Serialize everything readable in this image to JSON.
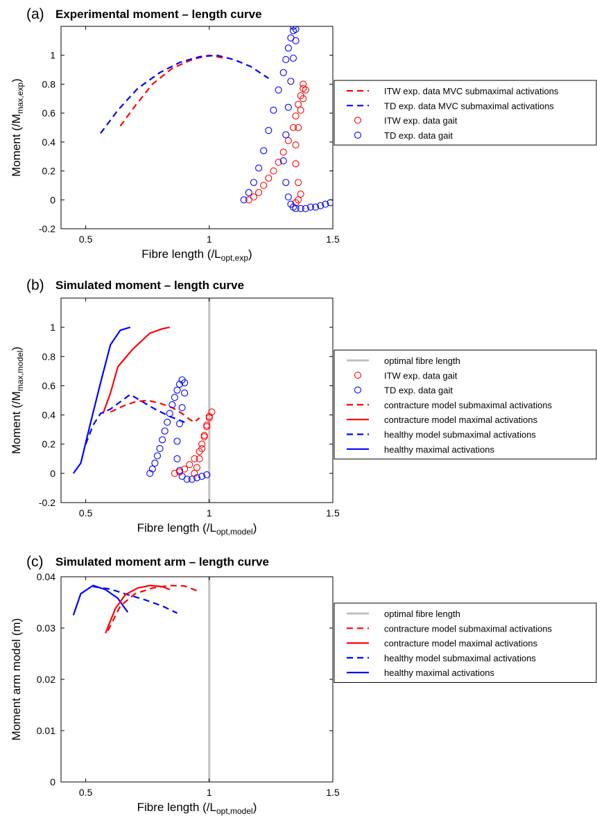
{
  "chart_data": [
    {
      "type": "line",
      "panel_label": "(a)",
      "title": "Experimental moment – length curve",
      "xlabel": "Fibre length (/L",
      "xlabel_sub": "opt,exp",
      "xlabel_end": ")",
      "ylabel": "Moment (/M",
      "ylabel_sub": "max,exp",
      "ylabel_end": ")",
      "xlim": [
        0.4,
        1.5
      ],
      "ylim": [
        -0.2,
        1.2
      ],
      "xticks": [
        "0.5",
        "1",
        "1.5"
      ],
      "xtick_values": [
        0.5,
        1,
        1.5
      ],
      "yticks": [
        "-0.2",
        "0",
        "0.2",
        "0.4",
        "0.6",
        "0.8",
        "1"
      ],
      "ytick_values": [
        -0.2,
        0,
        0.2,
        0.4,
        0.6,
        0.8,
        1
      ],
      "vline": null,
      "legend": [
        {
          "label": "ITW exp. data MVC submaximal activations",
          "style": "dashed",
          "color": "#ff0000"
        },
        {
          "label": "TD exp. data MVC submaximal activations",
          "style": "dashed",
          "color": "#0000ff"
        },
        {
          "label": "ITW exp. data gait",
          "style": "circle",
          "color": "#ff0000"
        },
        {
          "label": "TD exp. data gait",
          "style": "circle",
          "color": "#0000ff"
        }
      ],
      "series": [
        {
          "style": "dashed",
          "color": "#ff0000",
          "x": [
            0.64,
            0.7,
            0.77,
            0.85,
            0.93,
            1.0,
            1.06
          ],
          "y": [
            0.51,
            0.65,
            0.8,
            0.91,
            0.97,
            1.0,
            0.98
          ]
        },
        {
          "style": "dashed",
          "color": "#0000ff",
          "x": [
            0.56,
            0.63,
            0.71,
            0.8,
            0.88,
            0.96,
            1.03,
            1.1,
            1.17,
            1.24
          ],
          "y": [
            0.46,
            0.62,
            0.77,
            0.88,
            0.95,
            0.99,
            1.0,
            0.97,
            0.92,
            0.84
          ]
        },
        {
          "style": "circle",
          "color": "#ff0000",
          "x": [
            1.16,
            1.18,
            1.2,
            1.22,
            1.24,
            1.26,
            1.28,
            1.3,
            1.32,
            1.34,
            1.35,
            1.36,
            1.37,
            1.38,
            1.38,
            1.39,
            1.38,
            1.37,
            1.36,
            1.35,
            1.35,
            1.36,
            1.37,
            1.36,
            1.35
          ],
          "y": [
            0.0,
            0.02,
            0.05,
            0.1,
            0.15,
            0.2,
            0.26,
            0.33,
            0.41,
            0.5,
            0.58,
            0.66,
            0.72,
            0.77,
            0.8,
            0.76,
            0.7,
            0.62,
            0.5,
            0.38,
            0.25,
            0.12,
            0.04,
            0.0,
            -0.02
          ]
        },
        {
          "style": "circle",
          "color": "#0000ff",
          "x": [
            1.14,
            1.16,
            1.18,
            1.2,
            1.22,
            1.24,
            1.26,
            1.28,
            1.3,
            1.31,
            1.32,
            1.33,
            1.34,
            1.34,
            1.35,
            1.35,
            1.34,
            1.33,
            1.32,
            1.31,
            1.3,
            1.31,
            1.32,
            1.33,
            1.34,
            1.35,
            1.37,
            1.39,
            1.41,
            1.43,
            1.45,
            1.47,
            1.49
          ],
          "y": [
            0.0,
            0.05,
            0.12,
            0.22,
            0.34,
            0.48,
            0.62,
            0.76,
            0.88,
            0.97,
            1.05,
            1.12,
            1.17,
            1.2,
            1.18,
            1.1,
            0.98,
            0.82,
            0.64,
            0.45,
            0.27,
            0.12,
            0.02,
            -0.03,
            -0.05,
            -0.06,
            -0.06,
            -0.06,
            -0.05,
            -0.05,
            -0.04,
            -0.03,
            -0.02
          ]
        }
      ]
    },
    {
      "type": "line",
      "panel_label": "(b)",
      "title": "Simulated moment – length curve",
      "xlabel": "Fibre length (/L",
      "xlabel_sub": "opt,model",
      "xlabel_end": ")",
      "ylabel": "Moment (/M",
      "ylabel_sub": "max,model",
      "ylabel_end": ")",
      "xlim": [
        0.4,
        1.5
      ],
      "ylim": [
        -0.2,
        1.2
      ],
      "xticks": [
        "0.5",
        "1",
        "1.5"
      ],
      "xtick_values": [
        0.5,
        1,
        1.5
      ],
      "yticks": [
        "-0.2",
        "0",
        "0.2",
        "0.4",
        "0.6",
        "0.8",
        "1"
      ],
      "ytick_values": [
        -0.2,
        0,
        0.2,
        0.4,
        0.6,
        0.8,
        1
      ],
      "vline": 1.0,
      "legend": [
        {
          "label": "optimal fibre length",
          "style": "gray",
          "color": "#c0c0c0"
        },
        {
          "label": "ITW exp. data gait",
          "style": "circle",
          "color": "#ff0000"
        },
        {
          "label": "TD exp. data gait",
          "style": "circle",
          "color": "#0000ff"
        },
        {
          "label": "contracture model submaximal activations",
          "style": "dashed",
          "color": "#ff0000"
        },
        {
          "label": "contracture model maximal activations",
          "style": "solid",
          "color": "#ff0000"
        },
        {
          "label": "healthy model submaximal activations",
          "style": "dashed",
          "color": "#0000ff"
        },
        {
          "label": "healthy maximal activations",
          "style": "solid",
          "color": "#0000ff"
        }
      ],
      "series": [
        {
          "style": "solid",
          "color": "#0000ff",
          "x": [
            0.45,
            0.48,
            0.52,
            0.56,
            0.6,
            0.64,
            0.68
          ],
          "y": [
            0.0,
            0.07,
            0.35,
            0.62,
            0.88,
            0.98,
            1.0
          ]
        },
        {
          "style": "solid",
          "color": "#ff0000",
          "x": [
            0.57,
            0.6,
            0.63,
            0.69,
            0.76,
            0.81,
            0.84
          ],
          "y": [
            0.41,
            0.55,
            0.73,
            0.85,
            0.96,
            0.99,
            1.0
          ]
        },
        {
          "style": "dashed",
          "color": "#0000ff",
          "x": [
            0.5,
            0.53,
            0.56,
            0.6,
            0.64,
            0.68,
            0.72,
            0.78,
            0.84,
            0.9
          ],
          "y": [
            0.2,
            0.33,
            0.41,
            0.44,
            0.49,
            0.54,
            0.5,
            0.44,
            0.39,
            0.35
          ]
        },
        {
          "style": "dashed",
          "color": "#ff0000",
          "x": [
            0.6,
            0.65,
            0.7,
            0.75,
            0.8,
            0.85,
            0.89,
            0.92,
            0.94,
            0.96
          ],
          "y": [
            0.42,
            0.46,
            0.49,
            0.5,
            0.48,
            0.45,
            0.41,
            0.37,
            0.35,
            0.38
          ]
        },
        {
          "style": "circle",
          "color": "#0000ff",
          "x": [
            0.76,
            0.77,
            0.78,
            0.79,
            0.8,
            0.81,
            0.82,
            0.83,
            0.84,
            0.85,
            0.86,
            0.87,
            0.88,
            0.89,
            0.9,
            0.9,
            0.89,
            0.88,
            0.87,
            0.87,
            0.88,
            0.89,
            0.91,
            0.93,
            0.95,
            0.97,
            0.99
          ],
          "y": [
            0.0,
            0.03,
            0.07,
            0.12,
            0.17,
            0.23,
            0.29,
            0.35,
            0.41,
            0.47,
            0.52,
            0.57,
            0.61,
            0.64,
            0.62,
            0.55,
            0.45,
            0.34,
            0.22,
            0.1,
            0.02,
            -0.02,
            -0.04,
            -0.04,
            -0.03,
            -0.02,
            -0.01
          ]
        },
        {
          "style": "circle",
          "color": "#ff0000",
          "x": [
            0.86,
            0.88,
            0.9,
            0.92,
            0.94,
            0.96,
            0.97,
            0.98,
            0.99,
            1.0,
            1.01,
            1.0,
            0.99,
            0.98,
            0.97,
            0.96,
            0.95,
            0.94
          ],
          "y": [
            0.0,
            0.01,
            0.03,
            0.06,
            0.1,
            0.15,
            0.2,
            0.26,
            0.32,
            0.38,
            0.42,
            0.39,
            0.33,
            0.25,
            0.17,
            0.1,
            0.04,
            0.0
          ]
        }
      ]
    },
    {
      "type": "line",
      "panel_label": "(c)",
      "title": "Simulated moment arm – length curve",
      "xlabel": "Fibre length (/L",
      "xlabel_sub": "opt,model",
      "xlabel_end": ")",
      "ylabel": "Moment arm model (m)",
      "ylabel_sub": "",
      "ylabel_end": "",
      "xlim": [
        0.4,
        1.5
      ],
      "ylim": [
        0,
        0.04
      ],
      "xticks": [
        "0.5",
        "1",
        "1.5"
      ],
      "xtick_values": [
        0.5,
        1,
        1.5
      ],
      "yticks": [
        "0",
        "0.01",
        "0.02",
        "0.03",
        "0.04"
      ],
      "ytick_values": [
        0,
        0.01,
        0.02,
        0.03,
        0.04
      ],
      "vline": 1.0,
      "legend": [
        {
          "label": "optimal fibre length",
          "style": "gray",
          "color": "#c0c0c0"
        },
        {
          "label": "contracture model submaximal activations",
          "style": "dashed",
          "color": "#ff0000"
        },
        {
          "label": "contracture model maximal activations",
          "style": "solid",
          "color": "#ff0000"
        },
        {
          "label": "healthy model submaximal activations",
          "style": "dashed",
          "color": "#0000ff"
        },
        {
          "label": "healthy maximal activations",
          "style": "solid",
          "color": "#0000ff"
        }
      ],
      "series": [
        {
          "style": "solid",
          "color": "#0000ff",
          "x": [
            0.45,
            0.48,
            0.53,
            0.58,
            0.63,
            0.67
          ],
          "y": [
            0.0325,
            0.0367,
            0.0383,
            0.0375,
            0.0358,
            0.0331
          ]
        },
        {
          "style": "dashed",
          "color": "#0000ff",
          "x": [
            0.53,
            0.6,
            0.67,
            0.74,
            0.81,
            0.87
          ],
          "y": [
            0.0381,
            0.0376,
            0.0365,
            0.0355,
            0.0343,
            0.0329
          ]
        },
        {
          "style": "solid",
          "color": "#ff0000",
          "x": [
            0.58,
            0.62,
            0.66,
            0.71,
            0.76,
            0.81,
            0.84
          ],
          "y": [
            0.029,
            0.0338,
            0.0365,
            0.0378,
            0.0383,
            0.0381,
            0.0375
          ]
        },
        {
          "style": "dashed",
          "color": "#ff0000",
          "x": [
            0.59,
            0.64,
            0.7,
            0.77,
            0.84,
            0.9,
            0.96
          ],
          "y": [
            0.0295,
            0.0343,
            0.0367,
            0.0378,
            0.0383,
            0.0382,
            0.0371
          ]
        }
      ]
    }
  ]
}
